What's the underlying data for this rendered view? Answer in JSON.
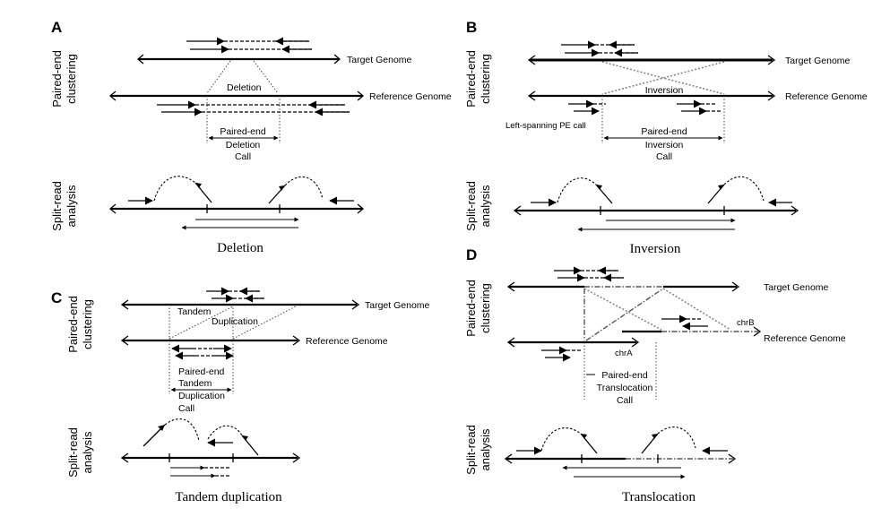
{
  "panels": {
    "A": {
      "letter": "A",
      "side_top": [
        "Paired-end",
        "clustering"
      ],
      "side_bottom": [
        "Split-read",
        "analysis"
      ],
      "target_label": "Target Genome",
      "reference_label": "Reference Genome",
      "event_label": "Deletion",
      "call_lines": [
        "Paired-end",
        "Deletion",
        "Call"
      ],
      "caption": "Deletion"
    },
    "B": {
      "letter": "B",
      "side_top": [
        "Paired-end",
        "clustering"
      ],
      "side_bottom": [
        "Split-read",
        "analysis"
      ],
      "target_label": "Target Genome",
      "reference_label": "Reference Genome",
      "event_label": "Inversion",
      "left_note": "Left-spanning PE call",
      "call_lines": [
        "Paired-end",
        "Inversion",
        "Call"
      ],
      "caption": "Inversion"
    },
    "C": {
      "letter": "C",
      "side_top": [
        "Paired-end",
        "clustering"
      ],
      "side_bottom": [
        "Split-read",
        "analysis"
      ],
      "target_label": "Target Genome",
      "reference_label": "Reference Genome",
      "event_label_1": "Tandem",
      "event_label_2": "Duplication",
      "call_lines": [
        "Paired-end",
        "Tandem",
        "Duplication",
        "Call"
      ],
      "caption": "Tandem duplication"
    },
    "D": {
      "letter": "D",
      "side_top": [
        "Paired-end",
        "clustering"
      ],
      "side_bottom": [
        "Split-read",
        "analysis"
      ],
      "target_label": "Target Genome",
      "reference_label": "Reference Genome",
      "chrA": "chrA",
      "chrB": "chrB",
      "call_lines": [
        "Paired-end",
        "Translocation",
        "Call"
      ],
      "caption": "Translocation"
    }
  }
}
